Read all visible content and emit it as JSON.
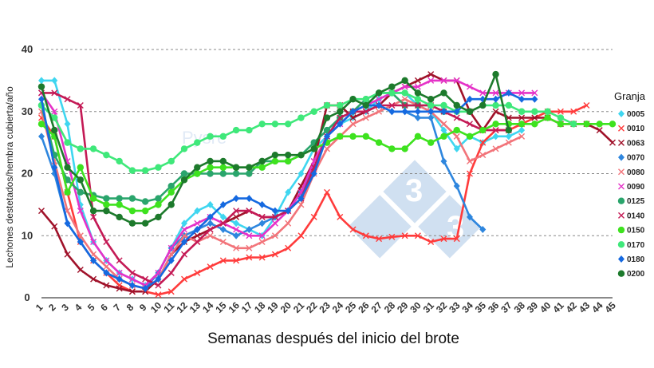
{
  "chart_data": {
    "type": "line",
    "xlabel": "Semanas después del inicio del brote",
    "ylabel": "Lechones destetados/hembra cubierta/año",
    "legend_title": "Granja",
    "legend_position": "right",
    "ylim": [
      0,
      40
    ],
    "yticks": [
      "0",
      "10",
      "20",
      "30",
      "40"
    ],
    "xlim": [
      1,
      45
    ],
    "xticks": [
      "1",
      "2",
      "3",
      "4",
      "5",
      "6",
      "7",
      "8",
      "9",
      "10",
      "11",
      "12",
      "13",
      "14",
      "15",
      "16",
      "17",
      "18",
      "19",
      "20",
      "21",
      "22",
      "23",
      "24",
      "25",
      "26",
      "27",
      "28",
      "29",
      "30",
      "31",
      "32",
      "33",
      "34",
      "35",
      "36",
      "37",
      "38",
      "39",
      "40",
      "41",
      "42",
      "43",
      "44",
      "45"
    ],
    "grid": "horizontal dashed",
    "series": [
      {
        "name": "0005",
        "color": "#3fd6f0",
        "marker": "diamond",
        "x": [
          1,
          2,
          3,
          4,
          5,
          6,
          7,
          8,
          9,
          10,
          11,
          12,
          13,
          14,
          15,
          16,
          17,
          18,
          19,
          20,
          21,
          22,
          23,
          24,
          25,
          26,
          27,
          28,
          29,
          30,
          31,
          32,
          33,
          34,
          35,
          36,
          37,
          38
        ],
        "y": [
          35,
          35,
          28,
          15,
          9,
          6,
          4,
          3,
          2,
          4,
          8,
          12,
          14,
          15,
          13,
          12,
          11,
          10,
          13,
          17,
          20,
          24,
          26,
          28,
          29,
          30,
          32,
          33,
          33,
          31,
          30,
          27,
          24,
          26,
          25,
          26,
          26,
          27
        ]
      },
      {
        "name": "0010",
        "color": "#ff3b3b",
        "marker": "x",
        "x": [
          1,
          2,
          3,
          4,
          5,
          6,
          7,
          8,
          9,
          10,
          11,
          12,
          13,
          14,
          15,
          16,
          17,
          18,
          19,
          20,
          21,
          22,
          23,
          24,
          25,
          26,
          27,
          28,
          29,
          30,
          31,
          32,
          33,
          34,
          35,
          36,
          37,
          38,
          39,
          40,
          41,
          42,
          43
        ],
        "y": [
          29,
          26,
          17,
          9,
          6,
          4,
          2,
          1,
          1,
          0.5,
          1,
          3,
          4,
          5,
          6,
          6,
          6.5,
          6.5,
          7,
          8,
          10,
          13,
          17,
          13,
          11,
          10,
          9.5,
          9.8,
          10,
          10,
          9,
          9.5,
          9.5,
          20,
          25,
          27,
          27,
          28,
          29,
          30,
          30,
          30,
          31
        ]
      },
      {
        "name": "0063",
        "color": "#a0122a",
        "marker": "x",
        "x": [
          1,
          2,
          3,
          4,
          5,
          6,
          7,
          8,
          9,
          10,
          11,
          12,
          13,
          14,
          15,
          16,
          17,
          18,
          19,
          20,
          21,
          22,
          23,
          24,
          25,
          26,
          27,
          28,
          29,
          30,
          31,
          32,
          33,
          34,
          35,
          36,
          37,
          38,
          39,
          40,
          41,
          42,
          43,
          44,
          45
        ],
        "y": [
          14,
          11.5,
          7,
          4.5,
          3,
          2,
          1.5,
          1,
          1,
          3,
          7,
          9,
          10,
          11,
          12,
          13,
          14,
          13,
          13,
          14,
          18,
          22,
          31,
          31,
          29,
          30,
          31,
          33,
          34,
          35,
          36,
          35,
          35,
          30,
          27,
          30,
          29,
          29,
          29,
          29,
          28,
          28,
          28,
          27,
          25
        ]
      },
      {
        "name": "0070",
        "color": "#2e86de",
        "marker": "diamond",
        "x": [
          1,
          2,
          3,
          4,
          5,
          6,
          7,
          8,
          9,
          10,
          11,
          12,
          13,
          14,
          15,
          16,
          17,
          18,
          19,
          20,
          21,
          22,
          23,
          24,
          25,
          26,
          27,
          28,
          29,
          30,
          31,
          32,
          33,
          34,
          35
        ],
        "y": [
          26,
          20,
          12,
          9,
          6,
          4,
          3,
          2,
          1.5,
          4,
          8,
          10,
          11,
          12,
          11,
          10,
          11,
          12,
          13,
          14,
          17,
          21,
          26,
          29,
          30,
          31,
          31,
          30,
          30,
          29,
          29,
          22,
          18,
          13,
          11
        ]
      },
      {
        "name": "0080",
        "color": "#f2747a",
        "marker": "x",
        "x": [
          1,
          2,
          3,
          4,
          5,
          6,
          7,
          8,
          9,
          10,
          11,
          12,
          13,
          14,
          15,
          16,
          17,
          18,
          19,
          20,
          21,
          22,
          23,
          24,
          25,
          26,
          27,
          28,
          29,
          30,
          31,
          32,
          33,
          34,
          35,
          36,
          37,
          38
        ],
        "y": [
          30,
          22,
          14,
          10,
          7,
          5,
          3,
          2,
          1.5,
          3,
          7,
          10,
          9,
          10,
          9,
          8,
          8,
          9,
          10,
          12,
          15,
          20,
          24,
          26,
          28,
          29,
          30,
          31,
          32,
          31,
          30,
          28,
          26,
          22,
          23,
          24,
          25,
          26
        ]
      },
      {
        "name": "0090",
        "color": "#e532c8",
        "marker": "x",
        "x": [
          1,
          2,
          3,
          4,
          5,
          6,
          7,
          8,
          9,
          10,
          11,
          12,
          13,
          14,
          15,
          16,
          17,
          18,
          19,
          20,
          21,
          22,
          23,
          24,
          25,
          26,
          27,
          28,
          29,
          30,
          31,
          32,
          33,
          34,
          35,
          36,
          37,
          38,
          39
        ],
        "y": [
          33,
          30,
          22,
          14,
          9,
          6,
          4,
          3,
          2,
          4,
          8,
          11,
          12,
          13,
          12,
          11,
          10,
          10,
          12,
          14,
          17,
          22,
          26,
          28,
          30,
          31,
          32,
          33,
          34,
          34,
          35,
          35,
          35,
          34,
          33,
          33,
          33,
          33,
          33
        ]
      },
      {
        "name": "0125",
        "color": "#2aa56c",
        "marker": "circle",
        "x": [
          1,
          2,
          3,
          4,
          5,
          6,
          7,
          8,
          9,
          10,
          11,
          12,
          13,
          14,
          15,
          16,
          17,
          18,
          19,
          20,
          21,
          22,
          23,
          24,
          25,
          26,
          27,
          28,
          29,
          30,
          31,
          32
        ],
        "y": [
          31,
          23,
          19,
          17,
          16.5,
          16,
          16,
          16,
          15.5,
          16,
          18,
          20,
          20,
          20,
          20,
          20,
          20,
          22,
          22,
          22,
          23,
          25,
          27,
          29,
          30,
          32,
          33,
          33,
          31,
          31,
          31,
          30
        ]
      },
      {
        "name": "0140",
        "color": "#c41a55",
        "marker": "x",
        "x": [
          1,
          2,
          3,
          4,
          5,
          6,
          7,
          8,
          9,
          10,
          11,
          12,
          13,
          14,
          15,
          16,
          17,
          18,
          19,
          20,
          21,
          22,
          23,
          24,
          25,
          26,
          27,
          28,
          29,
          30,
          31,
          32,
          33,
          34,
          35,
          36,
          37
        ],
        "y": [
          33,
          33,
          32,
          31,
          13,
          9,
          6,
          4,
          3,
          2,
          4,
          7,
          9,
          11,
          12,
          14,
          14,
          13,
          13,
          14,
          16,
          21,
          26,
          29,
          30,
          30,
          31,
          31,
          31,
          31,
          31,
          30,
          29,
          28,
          27,
          27,
          27
        ]
      },
      {
        "name": "0150",
        "color": "#3ee21f",
        "marker": "circle",
        "x": [
          1,
          2,
          3,
          4,
          5,
          6,
          7,
          8,
          9,
          10,
          11,
          12,
          13,
          14,
          15,
          16,
          17,
          18,
          19,
          20,
          21,
          22,
          23,
          24,
          25,
          26,
          27,
          28,
          29,
          30,
          31,
          32,
          33,
          34,
          35,
          36,
          37,
          38,
          39,
          40,
          41,
          42,
          43,
          44,
          45
        ],
        "y": [
          28,
          26,
          17,
          21,
          16,
          15,
          15,
          14,
          14,
          15,
          17,
          19,
          20,
          21,
          21,
          21,
          21,
          21,
          22,
          22,
          23,
          24,
          25,
          26,
          26,
          26,
          25,
          24,
          24,
          26,
          25,
          26,
          27,
          26,
          27,
          28,
          28,
          28,
          28,
          29,
          28,
          28,
          28,
          28,
          28
        ]
      },
      {
        "name": "0170",
        "color": "#3fe87a",
        "marker": "circle",
        "x": [
          1,
          2,
          3,
          4,
          5,
          6,
          7,
          8,
          9,
          10,
          11,
          12,
          13,
          14,
          15,
          16,
          17,
          18,
          19,
          20,
          21,
          22,
          23,
          24,
          25,
          26,
          27,
          28,
          29,
          30,
          31,
          32,
          33,
          34,
          35,
          36,
          37,
          38,
          39,
          40,
          41,
          42
        ],
        "y": [
          31,
          29,
          25,
          24,
          24,
          23,
          22,
          20.5,
          20.5,
          21,
          22,
          24,
          25,
          26,
          26,
          27,
          27,
          28,
          28,
          28,
          29,
          30,
          31,
          31,
          32,
          32,
          33,
          33,
          33,
          32,
          31,
          31,
          30,
          30,
          31,
          31,
          31,
          30,
          30,
          30,
          29,
          28
        ]
      },
      {
        "name": "0180",
        "color": "#1569e0",
        "marker": "diamond",
        "x": [
          1,
          2,
          3,
          4,
          5,
          6,
          7,
          8,
          9,
          10,
          11,
          12,
          13,
          14,
          15,
          16,
          17,
          18,
          19,
          20,
          21,
          22,
          23,
          24,
          25,
          26,
          27,
          28,
          29,
          30,
          31,
          32,
          33,
          34,
          35,
          36,
          37,
          38,
          39
        ],
        "y": [
          32,
          21,
          12,
          9,
          6,
          4,
          3,
          2,
          1.5,
          3,
          6,
          9,
          11,
          13,
          15,
          16,
          16,
          15,
          14,
          14,
          16,
          20,
          26,
          28,
          30,
          31,
          31,
          30,
          30,
          30,
          30,
          30,
          30,
          32,
          32,
          32,
          33,
          32,
          32
        ]
      },
      {
        "name": "0200",
        "color": "#1d7a2c",
        "marker": "circle",
        "x": [
          1,
          2,
          3,
          4,
          5,
          6,
          7,
          8,
          9,
          10,
          11,
          12,
          13,
          14,
          15,
          16,
          17,
          18,
          19,
          20,
          21,
          22,
          23,
          24,
          25,
          26,
          27,
          28,
          29,
          30,
          31,
          32,
          33,
          34,
          35,
          36,
          37
        ],
        "y": [
          34,
          27,
          21,
          19,
          14,
          14,
          13,
          12,
          12,
          13,
          15,
          19,
          21,
          22,
          22,
          21,
          21,
          22,
          23,
          23,
          23,
          24,
          29,
          30,
          32,
          31,
          33,
          34,
          35,
          33,
          32,
          33,
          31,
          30,
          31,
          36,
          27
        ]
      }
    ]
  }
}
